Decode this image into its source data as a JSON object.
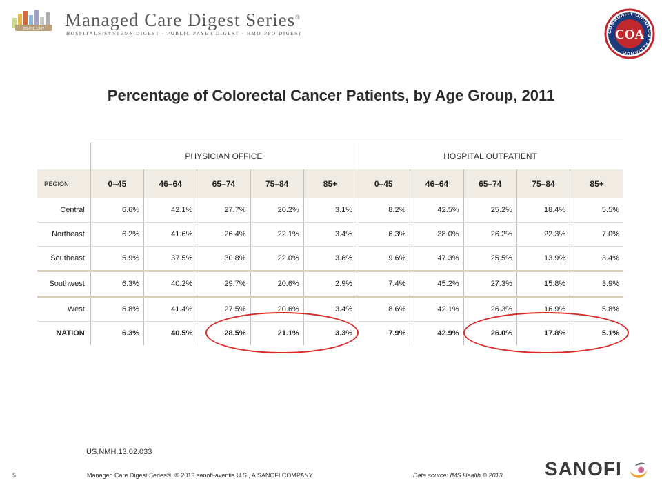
{
  "header": {
    "series_title": "Managed Care Digest Series",
    "series_mark": "®",
    "series_subtitle": "HOSPITALS/SYSTEMS DIGEST · PUBLIC PAYER DIGEST · HMO-PPO DIGEST",
    "since_badge": "SINCE 1987",
    "seal_text": "COMMUNITY ONCOLOGY ALLIANCE",
    "seal_initials": "COA"
  },
  "title": "Percentage of Colorectal Cancer Patients, by Age Group, 2011",
  "table": {
    "groups": [
      "PHYSICIAN OFFICE",
      "HOSPITAL OUTPATIENT"
    ],
    "region_header": "REGION",
    "age_groups": [
      "0–45",
      "46–64",
      "65–74",
      "75–84",
      "85+",
      "0–45",
      "46–64",
      "65–74",
      "75–84",
      "85+"
    ],
    "rows": [
      {
        "region": "Central",
        "values": [
          "6.6%",
          "42.1%",
          "27.7%",
          "20.2%",
          "3.1%",
          "8.2%",
          "42.5%",
          "25.2%",
          "18.4%",
          "5.5%"
        ]
      },
      {
        "region": "Northeast",
        "values": [
          "6.2%",
          "41.6%",
          "26.4%",
          "22.1%",
          "3.4%",
          "6.3%",
          "38.0%",
          "26.2%",
          "22.3%",
          "7.0%"
        ]
      },
      {
        "region": "Southeast",
        "values": [
          "5.9%",
          "37.5%",
          "30.8%",
          "22.0%",
          "3.6%",
          "9.6%",
          "47.3%",
          "25.5%",
          "13.9%",
          "3.4%"
        ]
      },
      {
        "region": "Southwest",
        "values": [
          "6.3%",
          "40.2%",
          "29.7%",
          "20.6%",
          "2.9%",
          "7.4%",
          "45.2%",
          "27.3%",
          "15.8%",
          "3.9%"
        ]
      },
      {
        "region": "West",
        "values": [
          "6.8%",
          "41.4%",
          "27.5%",
          "20.6%",
          "3.4%",
          "8.6%",
          "42.1%",
          "26.3%",
          "16.9%",
          "5.8%"
        ]
      },
      {
        "region": "NATION",
        "values": [
          "6.3%",
          "40.5%",
          "28.5%",
          "21.1%",
          "3.3%",
          "7.9%",
          "42.9%",
          "26.0%",
          "17.8%",
          "5.1%"
        ]
      }
    ]
  },
  "footer": {
    "job_code": "US.NMH.13.02.033",
    "page_number": "5",
    "copyright": "Managed Care Digest Series®, © 2013 sanofi-aventis U.S., A SANOFI COMPANY",
    "source": "Data source:  IMS Health © 2013",
    "sanofi_logo_text": "SANOFI"
  },
  "colors": {
    "header_fill": "#f1ece3",
    "highlight_circle": "#d92a2a",
    "sanofi_accent": "#e8a43a"
  }
}
